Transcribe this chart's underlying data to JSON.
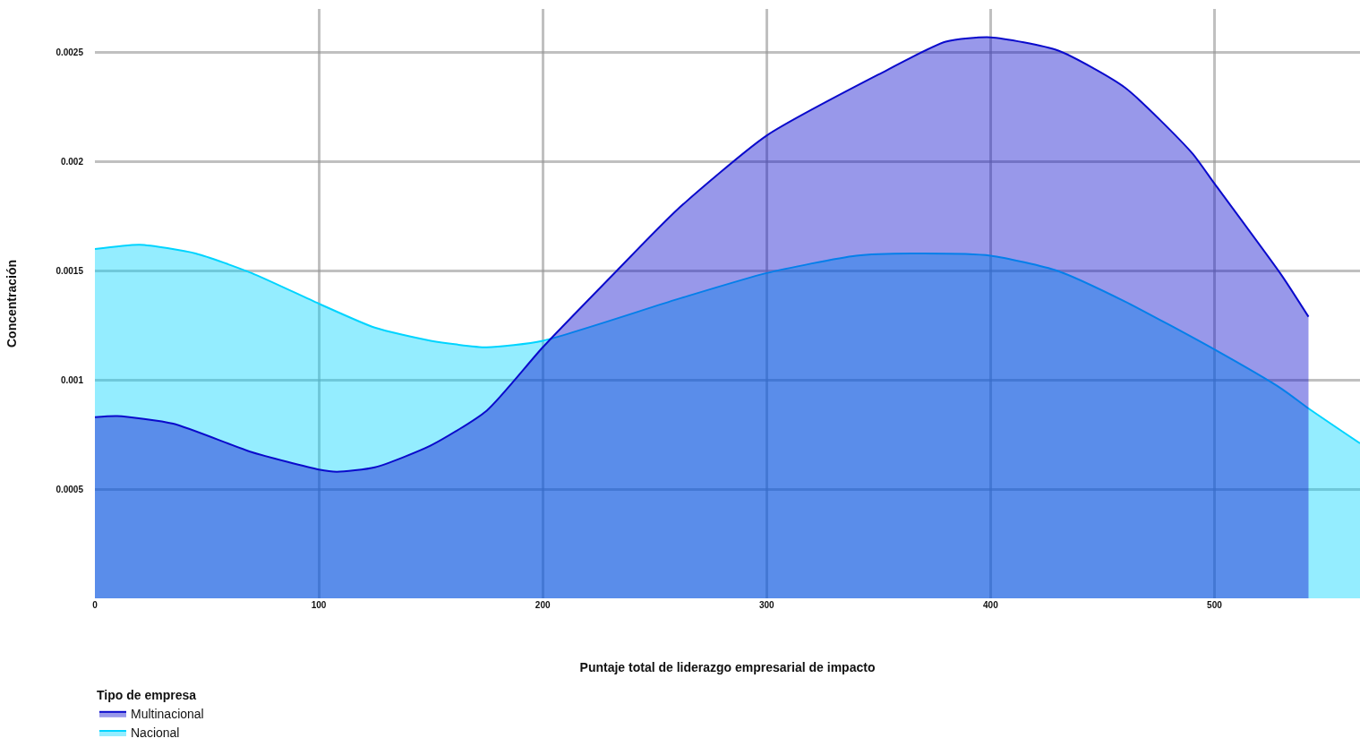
{
  "chart_data": {
    "type": "area",
    "xlabel": "Puntaje total de liderazgo empresarial de impacto",
    "ylabel": "Concentración",
    "legend_title": "Tipo de empresa",
    "legend": "bottom left",
    "grid": true,
    "xlim": [
      0,
      565
    ],
    "xticks": [
      0,
      100,
      200,
      300,
      400,
      500
    ],
    "ylim": [
      0,
      0.0027
    ],
    "yticks": [
      0.0005,
      0.001,
      0.0015,
      0.002,
      0.0025
    ],
    "series": [
      {
        "name": "Multinacional",
        "color": "#0a0acc",
        "x": [
          0,
          10,
          35,
          70,
          100,
          108,
          125,
          150,
          175,
          200,
          233,
          260,
          300,
          350,
          380,
          400,
          430,
          460,
          490,
          500,
          530,
          542
        ],
        "values": [
          0.00083,
          0.000835,
          0.0008,
          0.00067,
          0.00059,
          0.00058,
          0.0006,
          0.0007,
          0.00086,
          0.00115,
          0.0015,
          0.00178,
          0.00212,
          0.0024,
          0.00255,
          0.00257,
          0.00251,
          0.00234,
          0.00204,
          0.0019,
          0.00148,
          0.00129
        ]
      },
      {
        "name": "Nacional",
        "color": "#00d4ff",
        "x": [
          0,
          20,
          45,
          70,
          100,
          125,
          150,
          175,
          200,
          260,
          300,
          340,
          370,
          400,
          430,
          460,
          500,
          530,
          542,
          565
        ],
        "values": [
          0.0016,
          0.00162,
          0.00158,
          0.00149,
          0.00135,
          0.00124,
          0.00118,
          0.00115,
          0.00118,
          0.00137,
          0.00149,
          0.00157,
          0.00158,
          0.00157,
          0.0015,
          0.00136,
          0.00114,
          0.00096,
          0.00087,
          0.00071
        ]
      }
    ]
  }
}
